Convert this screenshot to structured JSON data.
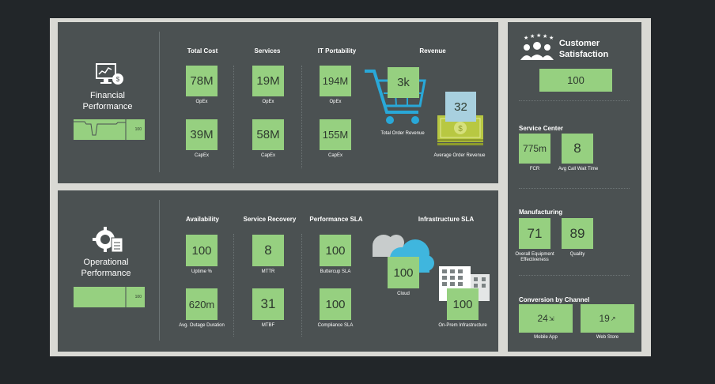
{
  "financial": {
    "title_line1": "Financial",
    "title_line2": "Performance",
    "spark_value": "100",
    "cols": {
      "total_cost": "Total Cost",
      "services": "Services",
      "it_portability": "IT Portability",
      "revenue": "Revenue"
    },
    "tiles": {
      "tc_opex": "78M",
      "tc_capex": "39M",
      "sv_opex": "19M",
      "sv_capex": "58M",
      "it_opex": "194M",
      "it_capex": "155M",
      "order_rev": "3k",
      "avg_rev": "32"
    },
    "labels": {
      "opex": "OpEx",
      "capex": "CapEx",
      "total_order_revenue": "Total Order Revenue",
      "avg_order_revenue": "Average Order Revenue"
    }
  },
  "operational": {
    "title_line1": "Operational",
    "title_line2": "Performance",
    "spark_value": "100",
    "cols": {
      "availability": "Availability",
      "service_recovery": "Service Recovery",
      "performance_sla": "Performance SLA",
      "infrastructure_sla": "Infrastructure SLA"
    },
    "tiles": {
      "uptime": "100",
      "outage": "620m",
      "mttr": "8",
      "mtbf": "31",
      "buttercup": "100",
      "compliance": "100",
      "cloud": "100",
      "onprem": "100"
    },
    "labels": {
      "uptime": "Uptime %",
      "outage": "Avg. Outage Duration",
      "mttr": "MTTR",
      "mtbf": "MTBF",
      "buttercup": "Buttercup SLA",
      "compliance": "Compliance SLA",
      "cloud": "Cloud",
      "onprem": "On-Prem Infrastructure"
    }
  },
  "right": {
    "customer_title_line1": "Customer",
    "customer_title_line2": "Satisfaction",
    "customer_value": "100",
    "service_center": {
      "title": "Service Center",
      "fcr_value": "775m",
      "fcr_label": "FCR",
      "wait_value": "8",
      "wait_label": "Avg Call Wait Time"
    },
    "manufacturing": {
      "title": "Manufacturing",
      "oee_value": "71",
      "oee_label_line1": "Overall Equipment",
      "oee_label_line2": "Effectiveness",
      "quality_value": "89",
      "quality_label": "Quality"
    },
    "conversion": {
      "title": "Conversion by Channel",
      "mobile_value": "24",
      "mobile_label": "Mobile App",
      "web_value": "19",
      "web_label": "Web Store"
    }
  },
  "colors": {
    "tile": "#96d080",
    "tile_blue": "#a8d0df",
    "panel": "#4b5152",
    "cart": "#29a8d8"
  }
}
